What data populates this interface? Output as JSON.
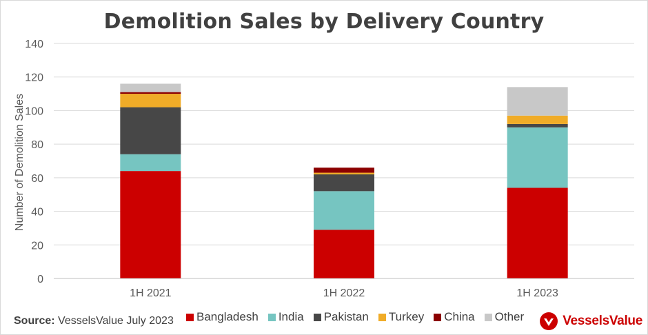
{
  "chart_data": {
    "type": "bar",
    "stacked": true,
    "title": "Demolition Sales by Delivery Country",
    "ylabel": "Number of Demolition Sales",
    "xlabel": "",
    "ylim": [
      0,
      140
    ],
    "yticks": [
      0,
      20,
      40,
      60,
      80,
      100,
      120,
      140
    ],
    "grid": true,
    "legend_position": "bottom",
    "categories": [
      "1H 2021",
      "1H 2022",
      "1H 2023"
    ],
    "series": [
      {
        "name": "Bangladesh",
        "color": "#cc0000",
        "values": [
          64,
          29,
          54
        ]
      },
      {
        "name": "India",
        "color": "#76c5c1",
        "values": [
          10,
          23,
          36
        ]
      },
      {
        "name": "Pakistan",
        "color": "#474747",
        "values": [
          28,
          10,
          2
        ]
      },
      {
        "name": "Turkey",
        "color": "#f0ac28",
        "values": [
          8,
          1,
          5
        ]
      },
      {
        "name": "China",
        "color": "#8b0000",
        "values": [
          1,
          3,
          0
        ]
      },
      {
        "name": "Other",
        "color": "#c8c8c8",
        "values": [
          5,
          0,
          17
        ]
      }
    ]
  },
  "footer": {
    "source_label": "Source:",
    "source_text": "VesselsValue July 2023",
    "logo_text": "VesselsValue"
  }
}
